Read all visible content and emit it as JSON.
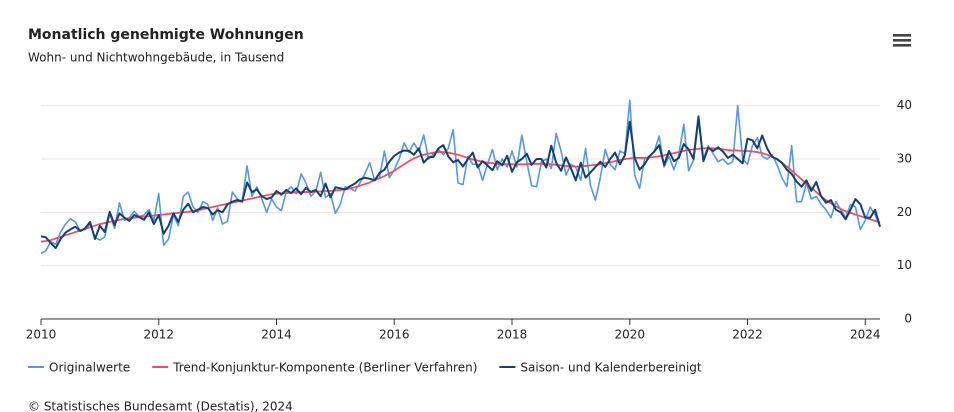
{
  "chart_data": {
    "type": "line",
    "title": "Monatlich genehmigte Wohnungen",
    "subtitle": "Wohn- und Nichtwohngebäude, in Tausend",
    "credit": "© Statistisches Bundesamt (Destatis), 2024",
    "xlim": [
      2010,
      2024.25
    ],
    "xticks": [
      2010,
      2012,
      2014,
      2016,
      2018,
      2020,
      2022,
      2024
    ],
    "ylim": [
      0,
      42
    ],
    "yticks": [
      0,
      10,
      20,
      30,
      40
    ],
    "grid": true,
    "x": [
      2010,
      2010.083,
      2010.167,
      2010.25,
      2010.333,
      2010.417,
      2010.5,
      2010.583,
      2010.667,
      2010.75,
      2010.833,
      2010.917,
      2011,
      2011.083,
      2011.167,
      2011.25,
      2011.333,
      2011.417,
      2011.5,
      2011.583,
      2011.667,
      2011.75,
      2011.833,
      2011.917,
      2012,
      2012.083,
      2012.167,
      2012.25,
      2012.333,
      2012.417,
      2012.5,
      2012.583,
      2012.667,
      2012.75,
      2012.833,
      2012.917,
      2013,
      2013.083,
      2013.167,
      2013.25,
      2013.333,
      2013.417,
      2013.5,
      2013.583,
      2013.667,
      2013.75,
      2013.833,
      2013.917,
      2014,
      2014.083,
      2014.167,
      2014.25,
      2014.333,
      2014.417,
      2014.5,
      2014.583,
      2014.667,
      2014.75,
      2014.833,
      2014.917,
      2015,
      2015.083,
      2015.167,
      2015.25,
      2015.333,
      2015.417,
      2015.5,
      2015.583,
      2015.667,
      2015.75,
      2015.833,
      2015.917,
      2016,
      2016.083,
      2016.167,
      2016.25,
      2016.333,
      2016.417,
      2016.5,
      2016.583,
      2016.667,
      2016.75,
      2016.833,
      2016.917,
      2017,
      2017.083,
      2017.167,
      2017.25,
      2017.333,
      2017.417,
      2017.5,
      2017.583,
      2017.667,
      2017.75,
      2017.833,
      2017.917,
      2018,
      2018.083,
      2018.167,
      2018.25,
      2018.333,
      2018.417,
      2018.5,
      2018.583,
      2018.667,
      2018.75,
      2018.833,
      2018.917,
      2019,
      2019.083,
      2019.167,
      2019.25,
      2019.333,
      2019.417,
      2019.5,
      2019.583,
      2019.667,
      2019.75,
      2019.833,
      2019.917,
      2020,
      2020.083,
      2020.167,
      2020.25,
      2020.333,
      2020.417,
      2020.5,
      2020.583,
      2020.667,
      2020.75,
      2020.833,
      2020.917,
      2021,
      2021.083,
      2021.167,
      2021.25,
      2021.333,
      2021.417,
      2021.5,
      2021.583,
      2021.667,
      2021.75,
      2021.833,
      2021.917,
      2022,
      2022.083,
      2022.167,
      2022.25,
      2022.333,
      2022.417,
      2022.5,
      2022.583,
      2022.667,
      2022.75,
      2022.833,
      2022.917,
      2023,
      2023.083,
      2023.167,
      2023.25,
      2023.333,
      2023.417,
      2023.5,
      2023.583,
      2023.667,
      2023.75,
      2023.833,
      2023.917,
      2024,
      2024.083,
      2024.167,
      2024.25
    ],
    "series": [
      {
        "name": "Originalwerte",
        "color": "#5b97d9",
        "width": 1.6,
        "values": [
          12.3,
          12.8,
          14.5,
          14.0,
          16.3,
          17.8,
          18.8,
          18.2,
          16.5,
          16.8,
          17.8,
          15.3,
          14.8,
          15.4,
          19.8,
          17.0,
          21.8,
          18.5,
          19.0,
          20.2,
          19.2,
          19.5,
          20.5,
          18.5,
          23.5,
          13.8,
          15.0,
          19.5,
          17.5,
          23.0,
          23.8,
          21.0,
          20.0,
          22.0,
          21.5,
          18.5,
          20.8,
          17.8,
          18.3,
          23.8,
          22.5,
          22.0,
          28.7,
          23.0,
          24.8,
          22.5,
          20.0,
          22.5,
          21.0,
          20.3,
          24.0,
          24.8,
          23.5,
          27.2,
          25.5,
          23.0,
          24.0,
          27.5,
          22.8,
          23.5,
          19.8,
          21.5,
          24.8,
          24.5,
          24.0,
          25.5,
          27.2,
          29.3,
          26.0,
          26.6,
          31.5,
          26.5,
          28.0,
          30.0,
          33.0,
          31.3,
          33.0,
          31.5,
          34.5,
          30.0,
          31.0,
          31.8,
          30.8,
          32.0,
          35.5,
          25.5,
          25.2,
          30.5,
          29.0,
          29.0,
          26.0,
          29.0,
          31.8,
          28.0,
          30.0,
          28.5,
          31.5,
          28.5,
          34.5,
          29.5,
          25.0,
          24.8,
          29.5,
          30.0,
          28.2,
          34.8,
          31.5,
          27.0,
          29.0,
          28.5,
          26.0,
          32.0,
          25.0,
          22.3,
          26.5,
          31.8,
          29.0,
          28.0,
          31.5,
          31.0,
          41.0,
          27.0,
          24.5,
          30.0,
          30.5,
          31.5,
          34.3,
          28.5,
          30.5,
          28.0,
          30.8,
          36.5,
          27.8,
          29.8,
          37.2,
          30.0,
          32.5,
          31.0,
          29.5,
          30.0,
          29.0,
          29.5,
          40.0,
          30.0,
          29.0,
          32.5,
          34.0,
          30.5,
          30.0,
          30.8,
          29.0,
          26.5,
          24.8,
          32.5,
          22.0,
          22.0,
          25.5,
          22.5,
          23.0,
          21.5,
          20.5,
          19.0,
          22.0,
          20.5,
          19.0,
          21.5,
          21.0,
          16.8,
          18.5,
          21.0,
          19.5,
          17.5
        ]
      },
      {
        "name": "Trend-Konjunktur-Komponente (Berliner Verfahren)",
        "color": "#e4546a",
        "width": 1.8,
        "values": [
          14.5,
          14.6,
          14.8,
          15.1,
          15.4,
          15.7,
          16.0,
          16.3,
          16.6,
          16.9,
          17.2,
          17.5,
          17.8,
          18.0,
          18.2,
          18.4,
          18.6,
          18.8,
          18.9,
          19.0,
          19.1,
          19.2,
          19.3,
          19.4,
          19.5,
          19.6,
          19.7,
          19.8,
          19.9,
          20.0,
          20.1,
          20.2,
          20.4,
          20.6,
          20.8,
          21.0,
          21.2,
          21.4,
          21.6,
          21.8,
          22.0,
          22.2,
          22.4,
          22.6,
          22.8,
          23.0,
          23.2,
          23.4,
          23.5,
          23.6,
          23.6,
          23.7,
          23.7,
          23.8,
          23.8,
          23.8,
          23.9,
          23.9,
          24.0,
          24.0,
          24.1,
          24.2,
          24.3,
          24.5,
          24.7,
          25.0,
          25.3,
          25.6,
          26.0,
          26.4,
          26.8,
          27.3,
          27.8,
          28.4,
          29.0,
          29.6,
          30.1,
          30.5,
          30.8,
          31.0,
          31.2,
          31.3,
          31.3,
          31.2,
          31.0,
          30.8,
          30.5,
          30.2,
          29.9,
          29.7,
          29.5,
          29.3,
          29.2,
          29.1,
          29.0,
          29.0,
          29.0,
          29.0,
          29.0,
          29.0,
          29.1,
          29.1,
          29.1,
          29.0,
          29.0,
          28.9,
          28.8,
          28.7,
          28.6,
          28.6,
          28.6,
          28.7,
          28.8,
          28.9,
          29.0,
          29.2,
          29.4,
          29.6,
          29.8,
          30.0,
          30.1,
          30.2,
          30.2,
          30.2,
          30.3,
          30.4,
          30.5,
          30.7,
          30.9,
          31.1,
          31.3,
          31.5,
          31.7,
          31.8,
          31.9,
          32.0,
          32.0,
          32.0,
          31.9,
          31.8,
          31.7,
          31.6,
          31.6,
          31.5,
          31.5,
          31.4,
          31.3,
          31.1,
          30.8,
          30.4,
          29.9,
          29.3,
          28.6,
          27.8,
          27.0,
          26.2,
          25.4,
          24.6,
          23.8,
          23.0,
          22.3,
          21.7,
          21.1,
          20.6,
          20.2,
          19.9,
          19.6,
          19.3,
          19.0,
          18.7,
          18.4,
          18.1
        ]
      },
      {
        "name": "Saison- und Kalenderbereinigt",
        "color": "#173f6e",
        "width": 2,
        "values": [
          15.5,
          15.3,
          14.2,
          13.3,
          15.0,
          16.2,
          16.8,
          17.3,
          16.5,
          17.0,
          18.2,
          15.0,
          17.5,
          16.3,
          20.1,
          17.6,
          19.8,
          19.0,
          18.4,
          19.5,
          19.1,
          18.6,
          20.0,
          17.8,
          19.5,
          16.0,
          17.5,
          19.8,
          18.2,
          20.5,
          21.6,
          20.0,
          20.5,
          21.0,
          20.8,
          19.6,
          20.4,
          20.0,
          21.5,
          22.0,
          22.3,
          22.0,
          25.6,
          23.8,
          24.3,
          23.0,
          22.5,
          22.8,
          24.0,
          23.3,
          24.2,
          23.6,
          24.5,
          23.4,
          24.6,
          23.8,
          24.2,
          23.0,
          25.4,
          22.8,
          24.7,
          24.5,
          24.3,
          24.9,
          25.4,
          26.2,
          26.5,
          26.3,
          26.0,
          27.4,
          28.0,
          29.5,
          30.6,
          31.2,
          31.6,
          31.5,
          30.8,
          32.0,
          29.3,
          30.3,
          30.4,
          32.0,
          32.6,
          30.5,
          29.4,
          29.8,
          28.6,
          30.0,
          31.2,
          28.4,
          29.6,
          28.8,
          27.9,
          29.6,
          28.8,
          30.6,
          27.6,
          29.4,
          30.0,
          31.0,
          28.9,
          30.0,
          30.0,
          28.4,
          32.5,
          29.3,
          27.8,
          30.3,
          28.3,
          26.0,
          29.3,
          26.5,
          27.5,
          28.5,
          29.5,
          28.5,
          30.0,
          31.2,
          29.0,
          30.7,
          37.0,
          30.2,
          28.0,
          29.0,
          30.5,
          31.4,
          32.6,
          28.9,
          31.5,
          29.6,
          30.2,
          32.8,
          31.8,
          30.0,
          38.0,
          29.6,
          32.1,
          31.5,
          32.2,
          31.4,
          30.2,
          30.8,
          30.0,
          29.2,
          33.8,
          33.5,
          32.0,
          34.4,
          32.0,
          30.4,
          30.0,
          29.3,
          28.0,
          27.2,
          25.8,
          24.8,
          26.0,
          24.0,
          25.7,
          23.0,
          21.8,
          22.3,
          20.5,
          20.0,
          18.7,
          20.5,
          22.5,
          21.5,
          19.0,
          19.0,
          20.5,
          17.3
        ]
      }
    ]
  }
}
